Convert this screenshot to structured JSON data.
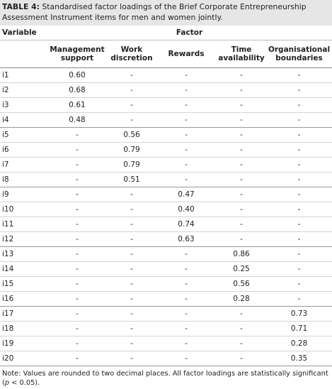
{
  "caption": {
    "label": "TABLE 4:",
    "text": "Standardised factor loadings of the Brief Corporate Entrepreneurship Assessment Instrument items for men and women jointly."
  },
  "table": {
    "header": {
      "variable": "Variable",
      "group": "Factor",
      "columns": [
        "Management support",
        "Work discretion",
        "Rewards",
        "Time availability",
        "Organisational boundaries"
      ]
    },
    "rows": [
      [
        "i1",
        "0.60",
        "-",
        "-",
        "-",
        "-"
      ],
      [
        "i2",
        "0.68",
        "-",
        "-",
        "-",
        "-"
      ],
      [
        "i3",
        "0.61",
        "-",
        "-",
        "-",
        "-"
      ],
      [
        "i4",
        "0.48",
        "-",
        "-",
        "-",
        "-"
      ],
      [
        "i5",
        "-",
        "0.56",
        "-",
        "-",
        "-"
      ],
      [
        "i6",
        "-",
        "0.79",
        "-",
        "-",
        "-"
      ],
      [
        "i7",
        "-",
        "0.79",
        "-",
        "-",
        "-"
      ],
      [
        "i8",
        "-",
        "0.51",
        "-",
        "-",
        "-"
      ],
      [
        "i9",
        "-",
        "-",
        "0.47",
        "-",
        "-"
      ],
      [
        "i10",
        "-",
        "-",
        "0.40",
        "-",
        "-"
      ],
      [
        "i11",
        "-",
        "-",
        "0.74",
        "-",
        "-"
      ],
      [
        "i12",
        "-",
        "-",
        "0.63",
        "-",
        "-"
      ],
      [
        "i13",
        "-",
        "-",
        "-",
        "0.86",
        "-"
      ],
      [
        "i14",
        "-",
        "-",
        "-",
        "0.25",
        "-"
      ],
      [
        "i15",
        "-",
        "-",
        "-",
        "0.56",
        "-"
      ],
      [
        "i16",
        "-",
        "-",
        "-",
        "0.28",
        "-"
      ],
      [
        "i17",
        "-",
        "-",
        "-",
        "-",
        "0.73"
      ],
      [
        "i18",
        "-",
        "-",
        "-",
        "-",
        "0.71"
      ],
      [
        "i19",
        "-",
        "-",
        "-",
        "-",
        "0.28"
      ],
      [
        "i20",
        "-",
        "-",
        "-",
        "-",
        "0.35"
      ]
    ]
  },
  "note": {
    "before": "Note: Values are rounded to two decimal places. All factor loadings are statistically significant (",
    "p": "p",
    "after": " < 0.05)."
  }
}
